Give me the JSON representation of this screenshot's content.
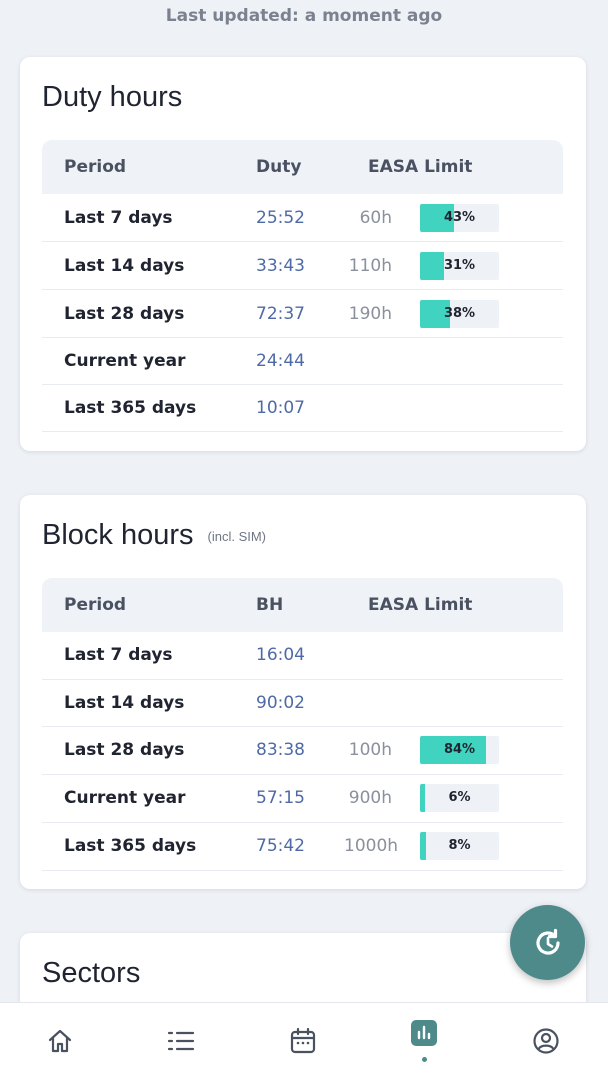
{
  "header": {
    "last_updated": "Last updated: a moment ago"
  },
  "duty_card": {
    "title": "Duty hours",
    "columns": {
      "period": "Period",
      "value": "Duty",
      "limit": "EASA Limit"
    },
    "rows": [
      {
        "period": "Last 7 days",
        "value": "25:52",
        "limit": "60h",
        "pct_label": "43%",
        "pct": 43
      },
      {
        "period": "Last 14 days",
        "value": "33:43",
        "limit": "110h",
        "pct_label": "31%",
        "pct": 31
      },
      {
        "period": "Last 28 days",
        "value": "72:37",
        "limit": "190h",
        "pct_label": "38%",
        "pct": 38
      },
      {
        "period": "Current year",
        "value": "24:44",
        "limit": "",
        "pct_label": "",
        "pct": null
      },
      {
        "period": "Last 365 days",
        "value": "10:07",
        "limit": "",
        "pct_label": "",
        "pct": null
      }
    ]
  },
  "block_card": {
    "title": "Block hours",
    "subtitle": "(incl. SIM)",
    "columns": {
      "period": "Period",
      "value": "BH",
      "limit": "EASA Limit"
    },
    "rows": [
      {
        "period": "Last 7 days",
        "value": "16:04",
        "limit": "",
        "pct_label": "",
        "pct": null
      },
      {
        "period": "Last 14 days",
        "value": "90:02",
        "limit": "",
        "pct_label": "",
        "pct": null
      },
      {
        "period": "Last 28 days",
        "value": "83:38",
        "limit": "100h",
        "pct_label": "84%",
        "pct": 84
      },
      {
        "period": "Current year",
        "value": "57:15",
        "limit": "900h",
        "pct_label": "6%",
        "pct": 6
      },
      {
        "period": "Last 365 days",
        "value": "75:42",
        "limit": "1000h",
        "pct_label": "8%",
        "pct": 8
      }
    ]
  },
  "sectors_card": {
    "title": "Sectors"
  },
  "fab": {
    "icon": "refresh-icon"
  },
  "nav": {
    "items": [
      {
        "icon": "home-icon"
      },
      {
        "icon": "list-icon"
      },
      {
        "icon": "calendar-icon"
      },
      {
        "icon": "stats-icon",
        "active": true
      },
      {
        "icon": "profile-icon"
      }
    ]
  },
  "colors": {
    "accent": "#3fd3c0",
    "fab": "#4f8a8b",
    "value_text": "#4e6aa6"
  }
}
